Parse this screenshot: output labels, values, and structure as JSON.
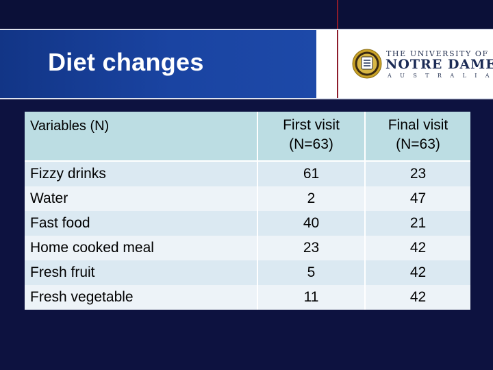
{
  "slide": {
    "title": "Diet changes"
  },
  "logo": {
    "line1": "THE UNIVERSITY OF",
    "line2": "NOTRE DAME",
    "line3": "AUSTRALIA",
    "seal_icon": "university-seal-icon"
  },
  "colors": {
    "background": "#0d1240",
    "title_band": "#1a44a2",
    "header_fill": "#bcdde3",
    "row_fill_a": "#dbe9f2",
    "row_fill_b": "#edf3f8",
    "accent_red": "#8d1c2b"
  },
  "table": {
    "headers": {
      "variable": "Variables (N)",
      "first_visit_line1": "First visit",
      "first_visit_line2": "(N=63)",
      "final_visit_line1": "Final visit",
      "final_visit_line2": "(N=63)"
    },
    "rows": [
      {
        "label": "Fizzy drinks",
        "first": "61",
        "final": "23"
      },
      {
        "label": "Water",
        "first": "2",
        "final": "47"
      },
      {
        "label": "Fast food",
        "first": "40",
        "final": "21"
      },
      {
        "label": "Home cooked meal",
        "first": "23",
        "final": "42"
      },
      {
        "label": "Fresh fruit",
        "first": "5",
        "final": "42"
      },
      {
        "label": "Fresh vegetable",
        "first": "11",
        "final": "42"
      }
    ]
  }
}
